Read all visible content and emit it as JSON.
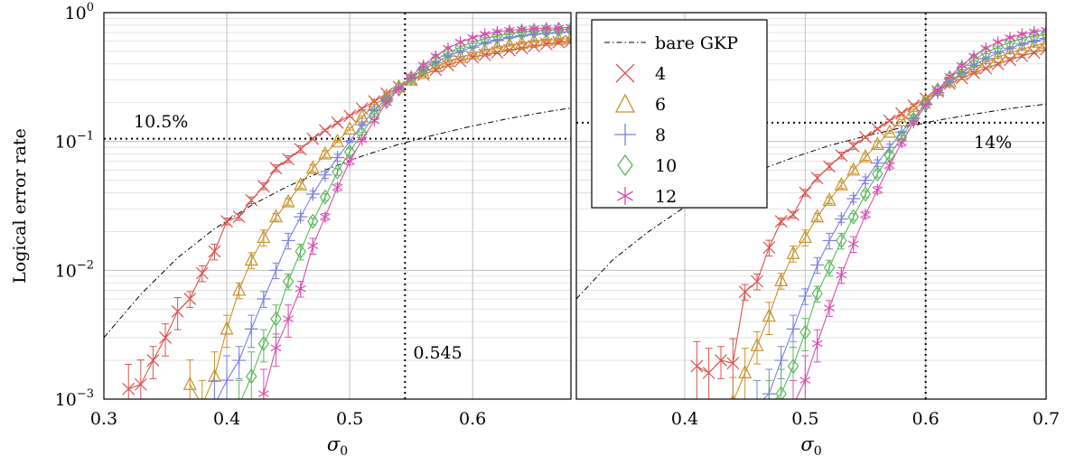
{
  "colors": {
    "4": "#d9534f",
    "6": "#c8922a",
    "8": "#7b7fe0",
    "10": "#5cb85c",
    "12": "#d94fb0",
    "bare": "#000000"
  },
  "shared": {
    "ylabel": "Logical error rate",
    "y_tick_base": "10",
    "y_tick_exps": [
      "0",
      "−1",
      "−2",
      "−3"
    ],
    "xlabel_base": "σ",
    "xlabel_sub": "0"
  },
  "legend": {
    "entries": [
      {
        "key": "bare",
        "label": "bare GKP",
        "marker": "dashdot"
      },
      {
        "key": "4",
        "label": "4",
        "marker": "x"
      },
      {
        "key": "6",
        "label": "6",
        "marker": "triangle"
      },
      {
        "key": "8",
        "label": "8",
        "marker": "plus"
      },
      {
        "key": "10",
        "label": "10",
        "marker": "diamond"
      },
      {
        "key": "12",
        "label": "12",
        "marker": "star"
      }
    ]
  },
  "chart_data": [
    {
      "type": "line",
      "yscale": "log",
      "xlim": [
        0.3,
        0.68
      ],
      "ylim": [
        0.001,
        1
      ],
      "x_ticks": [
        "0.3",
        "0.4",
        "0.5",
        "0.6"
      ],
      "xlabel": "σ0",
      "ylabel": "Logical error rate",
      "threshold": {
        "x": 0.545,
        "y": 0.105,
        "x_label": "0.545",
        "y_label": "10.5%"
      },
      "bare_gkp": {
        "x": [
          0.3,
          0.33,
          0.36,
          0.39,
          0.42,
          0.45,
          0.48,
          0.51,
          0.54,
          0.57,
          0.6,
          0.63,
          0.66,
          0.68
        ],
        "y": [
          0.003,
          0.0065,
          0.0125,
          0.021,
          0.032,
          0.045,
          0.06,
          0.077,
          0.095,
          0.113,
          0.132,
          0.151,
          0.17,
          0.182
        ]
      },
      "series": [
        {
          "name": "4",
          "x": [
            0.32,
            0.33,
            0.34,
            0.35,
            0.36,
            0.37,
            0.38,
            0.39,
            0.4,
            0.41,
            0.42,
            0.43,
            0.44,
            0.45,
            0.46,
            0.47,
            0.48,
            0.49,
            0.5,
            0.51,
            0.52,
            0.53,
            0.54,
            0.55,
            0.56,
            0.57,
            0.58,
            0.59,
            0.6,
            0.61,
            0.62,
            0.63,
            0.64,
            0.65,
            0.66,
            0.67,
            0.68
          ],
          "y": [
            0.0012,
            0.0013,
            0.002,
            0.003,
            0.0048,
            0.006,
            0.0095,
            0.014,
            0.024,
            0.026,
            0.035,
            0.045,
            0.062,
            0.073,
            0.087,
            0.105,
            0.122,
            0.14,
            0.158,
            0.18,
            0.205,
            0.235,
            0.265,
            0.3,
            0.33,
            0.36,
            0.39,
            0.42,
            0.45,
            0.47,
            0.49,
            0.51,
            0.53,
            0.55,
            0.57,
            0.59,
            0.6
          ]
        },
        {
          "name": "6",
          "x": [
            0.37,
            0.38,
            0.39,
            0.4,
            0.41,
            0.42,
            0.43,
            0.44,
            0.45,
            0.46,
            0.47,
            0.48,
            0.49,
            0.5,
            0.51,
            0.52,
            0.53,
            0.54,
            0.55,
            0.56,
            0.57,
            0.58,
            0.59,
            0.6,
            0.61,
            0.62,
            0.63,
            0.64,
            0.65,
            0.66,
            0.67,
            0.68
          ],
          "y": [
            0.0013,
            0.0009,
            0.0015,
            0.0035,
            0.007,
            0.012,
            0.018,
            0.026,
            0.034,
            0.046,
            0.062,
            0.08,
            0.1,
            0.125,
            0.155,
            0.19,
            0.225,
            0.265,
            0.3,
            0.34,
            0.38,
            0.42,
            0.45,
            0.48,
            0.51,
            0.54,
            0.56,
            0.58,
            0.6,
            0.61,
            0.62,
            0.63
          ]
        },
        {
          "name": "8",
          "x": [
            0.39,
            0.4,
            0.41,
            0.42,
            0.43,
            0.44,
            0.45,
            0.46,
            0.47,
            0.48,
            0.49,
            0.5,
            0.51,
            0.52,
            0.53,
            0.54,
            0.55,
            0.56,
            0.57,
            0.58,
            0.59,
            0.6,
            0.61,
            0.62,
            0.63,
            0.64,
            0.65,
            0.66,
            0.67,
            0.68
          ],
          "y": [
            0.0009,
            0.0014,
            0.002,
            0.0035,
            0.006,
            0.01,
            0.017,
            0.026,
            0.039,
            0.055,
            0.075,
            0.1,
            0.135,
            0.175,
            0.215,
            0.26,
            0.31,
            0.36,
            0.41,
            0.46,
            0.5,
            0.54,
            0.58,
            0.61,
            0.64,
            0.66,
            0.68,
            0.69,
            0.7,
            0.71
          ]
        },
        {
          "name": "10",
          "x": [
            0.41,
            0.42,
            0.43,
            0.44,
            0.45,
            0.46,
            0.47,
            0.48,
            0.49,
            0.5,
            0.51,
            0.52,
            0.53,
            0.54,
            0.55,
            0.56,
            0.57,
            0.58,
            0.59,
            0.6,
            0.61,
            0.62,
            0.63,
            0.64,
            0.65,
            0.66,
            0.67,
            0.68
          ],
          "y": [
            0.0009,
            0.0015,
            0.0027,
            0.0042,
            0.0082,
            0.014,
            0.024,
            0.037,
            0.058,
            0.083,
            0.115,
            0.16,
            0.205,
            0.255,
            0.31,
            0.37,
            0.43,
            0.49,
            0.54,
            0.59,
            0.63,
            0.66,
            0.69,
            0.71,
            0.72,
            0.73,
            0.74,
            0.74
          ]
        },
        {
          "name": "12",
          "x": [
            0.43,
            0.44,
            0.45,
            0.46,
            0.47,
            0.48,
            0.49,
            0.5,
            0.51,
            0.52,
            0.53,
            0.54,
            0.55,
            0.56,
            0.57,
            0.58,
            0.59,
            0.6,
            0.61,
            0.62,
            0.63,
            0.64,
            0.65,
            0.66,
            0.67,
            0.68
          ],
          "y": [
            0.0011,
            0.0025,
            0.0042,
            0.0072,
            0.0155,
            0.026,
            0.044,
            0.07,
            0.103,
            0.145,
            0.2,
            0.255,
            0.32,
            0.39,
            0.46,
            0.53,
            0.59,
            0.64,
            0.68,
            0.71,
            0.73,
            0.74,
            0.75,
            0.76,
            0.76,
            0.77
          ]
        }
      ]
    },
    {
      "type": "line",
      "yscale": "log",
      "xlim": [
        0.31,
        0.7
      ],
      "ylim": [
        0.001,
        1
      ],
      "x_ticks": [
        "0.4",
        "0.5",
        "0.6",
        "0.7"
      ],
      "xlabel": "σ0",
      "threshold": {
        "x": 0.6,
        "y": 0.14,
        "y_label": "14%"
      },
      "bare_gkp": {
        "x": [
          0.31,
          0.34,
          0.37,
          0.4,
          0.43,
          0.46,
          0.49,
          0.52,
          0.55,
          0.58,
          0.61,
          0.64,
          0.67,
          0.7
        ],
        "y": [
          0.006,
          0.012,
          0.02,
          0.031,
          0.044,
          0.059,
          0.075,
          0.093,
          0.11,
          0.128,
          0.146,
          0.163,
          0.18,
          0.195
        ]
      },
      "series": [
        {
          "name": "4",
          "x": [
            0.41,
            0.42,
            0.43,
            0.44,
            0.45,
            0.46,
            0.47,
            0.48,
            0.49,
            0.5,
            0.51,
            0.52,
            0.53,
            0.54,
            0.55,
            0.56,
            0.57,
            0.58,
            0.59,
            0.6,
            0.61,
            0.62,
            0.63,
            0.64,
            0.65,
            0.66,
            0.67,
            0.68,
            0.69,
            0.7
          ],
          "y": [
            0.0018,
            0.0016,
            0.002,
            0.0019,
            0.0068,
            0.0082,
            0.015,
            0.024,
            0.027,
            0.04,
            0.052,
            0.064,
            0.078,
            0.092,
            0.108,
            0.125,
            0.145,
            0.165,
            0.19,
            0.215,
            0.245,
            0.28,
            0.31,
            0.34,
            0.37,
            0.4,
            0.43,
            0.46,
            0.49,
            0.52
          ]
        },
        {
          "name": "6",
          "x": [
            0.44,
            0.45,
            0.46,
            0.47,
            0.48,
            0.49,
            0.5,
            0.51,
            0.52,
            0.53,
            0.54,
            0.55,
            0.56,
            0.57,
            0.58,
            0.59,
            0.6,
            0.61,
            0.62,
            0.63,
            0.64,
            0.65,
            0.66,
            0.67,
            0.68,
            0.69,
            0.7
          ],
          "y": [
            0.00095,
            0.0016,
            0.0026,
            0.0044,
            0.0083,
            0.0135,
            0.018,
            0.026,
            0.035,
            0.046,
            0.06,
            0.076,
            0.095,
            0.118,
            0.145,
            0.175,
            0.21,
            0.25,
            0.29,
            0.33,
            0.37,
            0.41,
            0.45,
            0.49,
            0.52,
            0.55,
            0.58
          ]
        },
        {
          "name": "8",
          "x": [
            0.46,
            0.47,
            0.48,
            0.49,
            0.5,
            0.51,
            0.52,
            0.53,
            0.54,
            0.55,
            0.56,
            0.57,
            0.58,
            0.59,
            0.6,
            0.61,
            0.62,
            0.63,
            0.64,
            0.65,
            0.66,
            0.67,
            0.68,
            0.69,
            0.7
          ],
          "y": [
            0.0009,
            0.0011,
            0.002,
            0.0035,
            0.0063,
            0.011,
            0.017,
            0.025,
            0.036,
            0.05,
            0.068,
            0.09,
            0.118,
            0.152,
            0.195,
            0.24,
            0.29,
            0.34,
            0.39,
            0.44,
            0.49,
            0.53,
            0.57,
            0.6,
            0.63
          ]
        },
        {
          "name": "10",
          "x": [
            0.47,
            0.48,
            0.49,
            0.5,
            0.51,
            0.52,
            0.53,
            0.54,
            0.55,
            0.56,
            0.57,
            0.58,
            0.59,
            0.6,
            0.61,
            0.62,
            0.63,
            0.64,
            0.65,
            0.66,
            0.67,
            0.68,
            0.69,
            0.7
          ],
          "y": [
            0.0009,
            0.0011,
            0.0018,
            0.0033,
            0.0066,
            0.0105,
            0.017,
            0.026,
            0.039,
            0.056,
            0.078,
            0.108,
            0.148,
            0.195,
            0.25,
            0.31,
            0.37,
            0.43,
            0.49,
            0.54,
            0.59,
            0.63,
            0.66,
            0.68
          ]
        },
        {
          "name": "12",
          "x": [
            0.49,
            0.5,
            0.51,
            0.52,
            0.53,
            0.54,
            0.55,
            0.56,
            0.57,
            0.58,
            0.59,
            0.6,
            0.61,
            0.62,
            0.63,
            0.64,
            0.65,
            0.66,
            0.67,
            0.68,
            0.69,
            0.7
          ],
          "y": [
            0.0009,
            0.0014,
            0.0027,
            0.0051,
            0.0092,
            0.016,
            0.027,
            0.042,
            0.065,
            0.098,
            0.14,
            0.19,
            0.25,
            0.32,
            0.39,
            0.46,
            0.53,
            0.59,
            0.64,
            0.68,
            0.71,
            0.73
          ]
        }
      ]
    }
  ]
}
